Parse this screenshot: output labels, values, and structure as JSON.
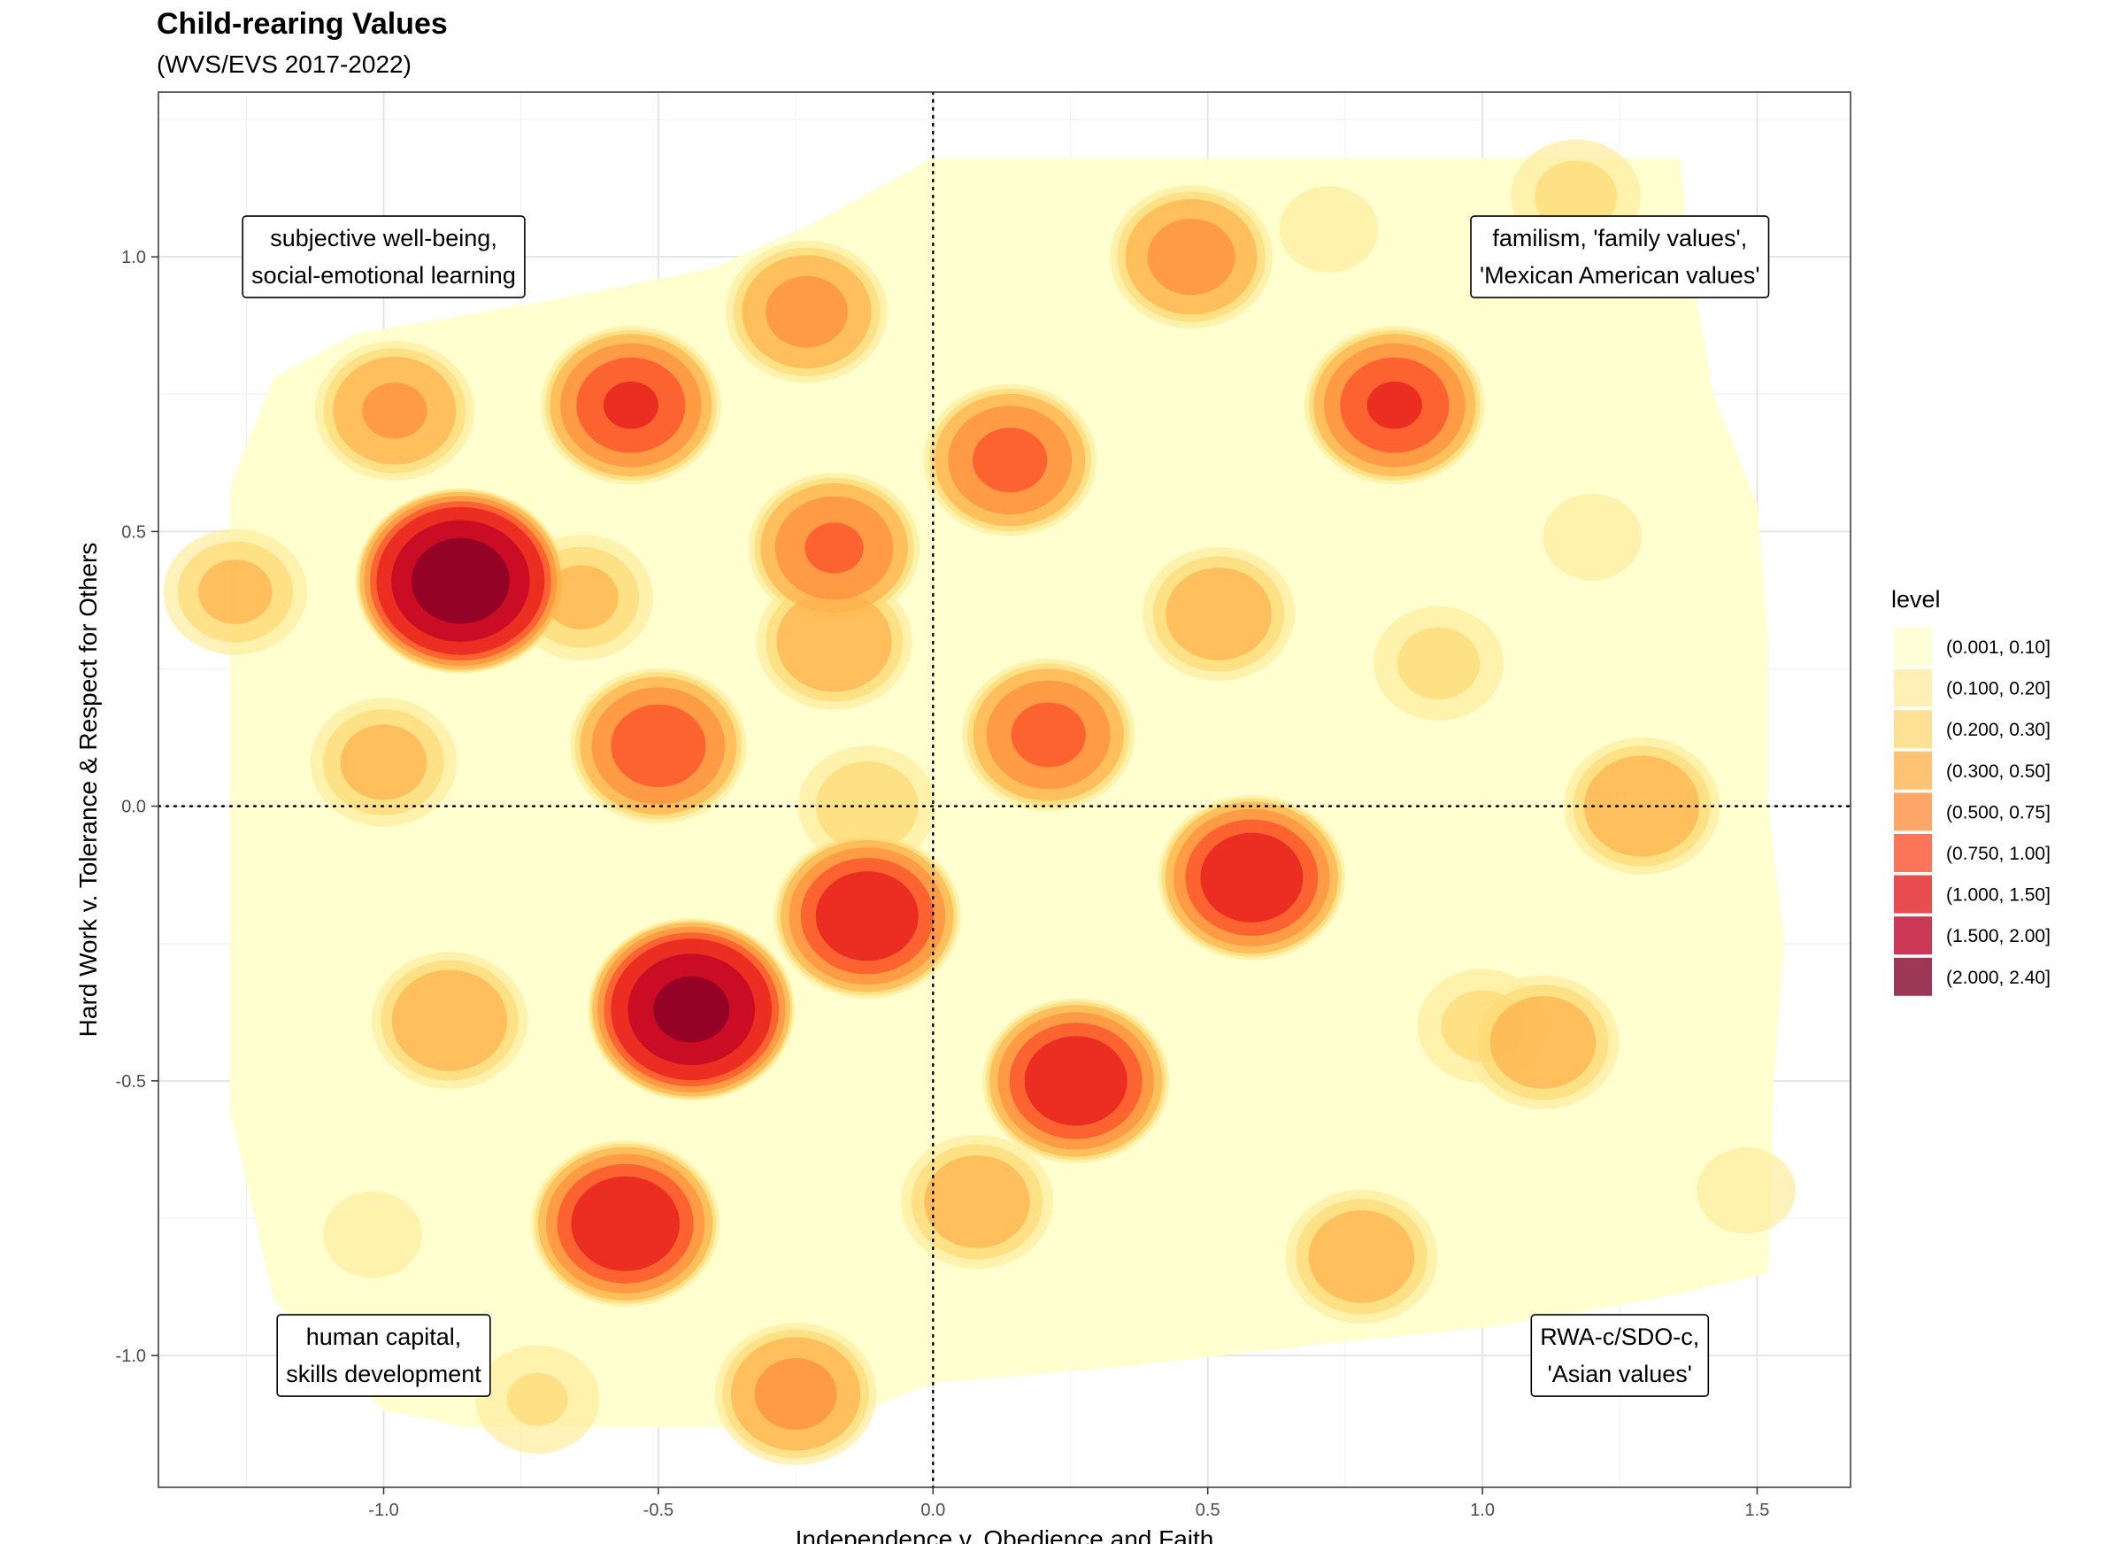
{
  "chart_data": {
    "type": "filled-contour",
    "title": "Child-rearing Values",
    "subtitle": "(WVS/EVS 2017-2022)",
    "xlabel": "Independence v. Obedience and Faith",
    "ylabel": "Hard Work v. Tolerance & Respect for Others",
    "xlim": [
      -1.41,
      1.67
    ],
    "ylim": [
      -1.24,
      1.3
    ],
    "x_ticks": [
      -1.0,
      -0.5,
      0.0,
      0.5,
      1.0,
      1.5
    ],
    "x_tick_labels": [
      "-1.0",
      "-0.5",
      "0.0",
      "0.5",
      "1.0",
      "1.5"
    ],
    "y_ticks": [
      -1.0,
      -0.5,
      0.0,
      0.5,
      1.0
    ],
    "y_tick_labels": [
      "-1.0",
      "-0.5",
      "0.0",
      "0.5",
      "1.0"
    ],
    "reference_lines": {
      "x": 0,
      "y": 0,
      "style": "dotted"
    },
    "legend": {
      "title": "level",
      "position": "right",
      "levels": [
        {
          "label": "(0.001, 0.10]",
          "color": "#FFFFCC"
        },
        {
          "label": "(0.100, 0.20]",
          "color": "#FFEDA0"
        },
        {
          "label": "(0.200, 0.30]",
          "color": "#FED976"
        },
        {
          "label": "(0.300, 0.50]",
          "color": "#FEB24C"
        },
        {
          "label": "(0.500, 0.75]",
          "color": "#FD8D3C"
        },
        {
          "label": "(0.750, 1.00]",
          "color": "#FC4E2A"
        },
        {
          "label": "(1.000, 1.50]",
          "color": "#E31A1C"
        },
        {
          "label": "(1.500, 2.00]",
          "color": "#BD0026"
        },
        {
          "label": "(2.000, 2.40]",
          "color": "#800026"
        }
      ]
    },
    "annotations": [
      {
        "x": -1.0,
        "y": 1.0,
        "lines": [
          "subjective well-being,",
          "social-emotional learning"
        ]
      },
      {
        "x": 1.25,
        "y": 1.0,
        "lines": [
          "familism, 'family values',",
          "'Mexican American values'"
        ]
      },
      {
        "x": -1.0,
        "y": -1.0,
        "lines": [
          "human capital,",
          "skills development"
        ]
      },
      {
        "x": 1.25,
        "y": -1.0,
        "lines": [
          "RWA-c/SDO-c,",
          "'Asian values'"
        ]
      }
    ],
    "density_peaks": [
      {
        "x": -0.86,
        "y": 0.41,
        "level": 2.4
      },
      {
        "x": -0.44,
        "y": -0.37,
        "level": 2.2
      },
      {
        "x": 0.58,
        "y": -0.13,
        "level": 1.3
      },
      {
        "x": -0.56,
        "y": -0.76,
        "level": 1.35
      },
      {
        "x": -0.12,
        "y": -0.2,
        "level": 1.3
      },
      {
        "x": 0.26,
        "y": -0.5,
        "level": 1.3
      },
      {
        "x": -0.55,
        "y": 0.73,
        "level": 1.05
      },
      {
        "x": 0.84,
        "y": 0.73,
        "level": 1.05
      },
      {
        "x": -0.5,
        "y": 0.11,
        "level": 0.95
      },
      {
        "x": 0.21,
        "y": 0.13,
        "level": 0.85
      },
      {
        "x": 0.14,
        "y": 0.63,
        "level": 0.85
      },
      {
        "x": -0.18,
        "y": 0.47,
        "level": 0.8
      },
      {
        "x": 0.47,
        "y": 1.0,
        "level": 0.62
      },
      {
        "x": -0.23,
        "y": 0.9,
        "level": 0.6
      },
      {
        "x": -0.25,
        "y": -1.07,
        "level": 0.6
      },
      {
        "x": -0.98,
        "y": 0.72,
        "level": 0.55
      },
      {
        "x": -0.88,
        "y": -0.39,
        "level": 0.5
      },
      {
        "x": 1.29,
        "y": 0.0,
        "level": 0.5
      },
      {
        "x": 1.11,
        "y": -0.43,
        "level": 0.45
      },
      {
        "x": 0.78,
        "y": -0.82,
        "level": 0.45
      },
      {
        "x": -0.18,
        "y": 0.3,
        "level": 0.5
      },
      {
        "x": 0.08,
        "y": -0.72,
        "level": 0.45
      },
      {
        "x": 0.52,
        "y": 0.35,
        "level": 0.45
      },
      {
        "x": -1.0,
        "y": 0.08,
        "level": 0.38
      },
      {
        "x": -0.64,
        "y": 0.38,
        "level": 0.35
      },
      {
        "x": -1.27,
        "y": 0.39,
        "level": 0.35
      },
      {
        "x": 0.92,
        "y": 0.26,
        "level": 0.25
      },
      {
        "x": 1.17,
        "y": 1.11,
        "level": 0.25
      },
      {
        "x": -0.72,
        "y": -1.08,
        "level": 0.22
      },
      {
        "x": 1.0,
        "y": -0.4,
        "level": 0.25
      },
      {
        "x": -0.12,
        "y": 0.0,
        "level": 0.3
      },
      {
        "x": 1.48,
        "y": -0.7,
        "level": 0.15
      },
      {
        "x": -1.02,
        "y": -0.78,
        "level": 0.15
      },
      {
        "x": 0.72,
        "y": 1.05,
        "level": 0.15
      },
      {
        "x": 1.2,
        "y": 0.49,
        "level": 0.15
      }
    ]
  }
}
